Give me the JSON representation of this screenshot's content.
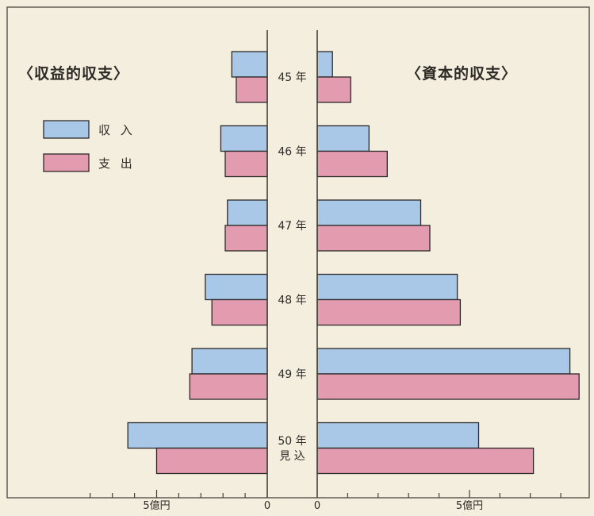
{
  "chart_data": {
    "type": "bar",
    "orientation": "horizontal",
    "layout": "back-to-back (population pyramid style)",
    "categories": [
      "45年",
      "46年",
      "47年",
      "48年",
      "49年",
      "50年見込"
    ],
    "category_labels": [
      {
        "lines": [
          "45 年"
        ]
      },
      {
        "lines": [
          "46 年"
        ]
      },
      {
        "lines": [
          "47 年"
        ]
      },
      {
        "lines": [
          "48 年"
        ]
      },
      {
        "lines": [
          "49 年"
        ]
      },
      {
        "lines": [
          "50 年",
          "見 込"
        ]
      }
    ],
    "left_panel": {
      "title": "〈収益的収支〉",
      "series": [
        {
          "name": "収入",
          "values": [
            1.6,
            2.1,
            1.8,
            2.8,
            3.4,
            6.3
          ]
        },
        {
          "name": "支出",
          "values": [
            1.4,
            1.9,
            1.9,
            2.5,
            3.5,
            5.0
          ]
        }
      ]
    },
    "right_panel": {
      "title": "〈資本的収支〉",
      "series": [
        {
          "name": "収入",
          "values": [
            0.5,
            1.7,
            3.4,
            4.6,
            8.3,
            5.3
          ]
        },
        {
          "name": "支出",
          "values": [
            1.1,
            2.3,
            3.7,
            4.7,
            8.6,
            7.1
          ]
        }
      ]
    },
    "legend": {
      "position": "upper-left",
      "items": [
        {
          "label": "収 入",
          "color": "#a9c7e6"
        },
        {
          "label": "支 出",
          "color": "#e39bb0"
        }
      ]
    },
    "x_axis": {
      "zero_label": "0",
      "ticks_left": [
        {
          "value": 5,
          "label": "5億円"
        }
      ],
      "ticks_right": [
        {
          "value": 5,
          "label": "5億円"
        }
      ],
      "xlim_left": [
        0,
        8.6
      ],
      "xlim_right": [
        0,
        8.7
      ]
    },
    "grid": false
  },
  "colors": {
    "income": "#a9c7e6",
    "expense": "#e39bb0",
    "background": "#f4eedf",
    "outline": "#2c2a28"
  }
}
